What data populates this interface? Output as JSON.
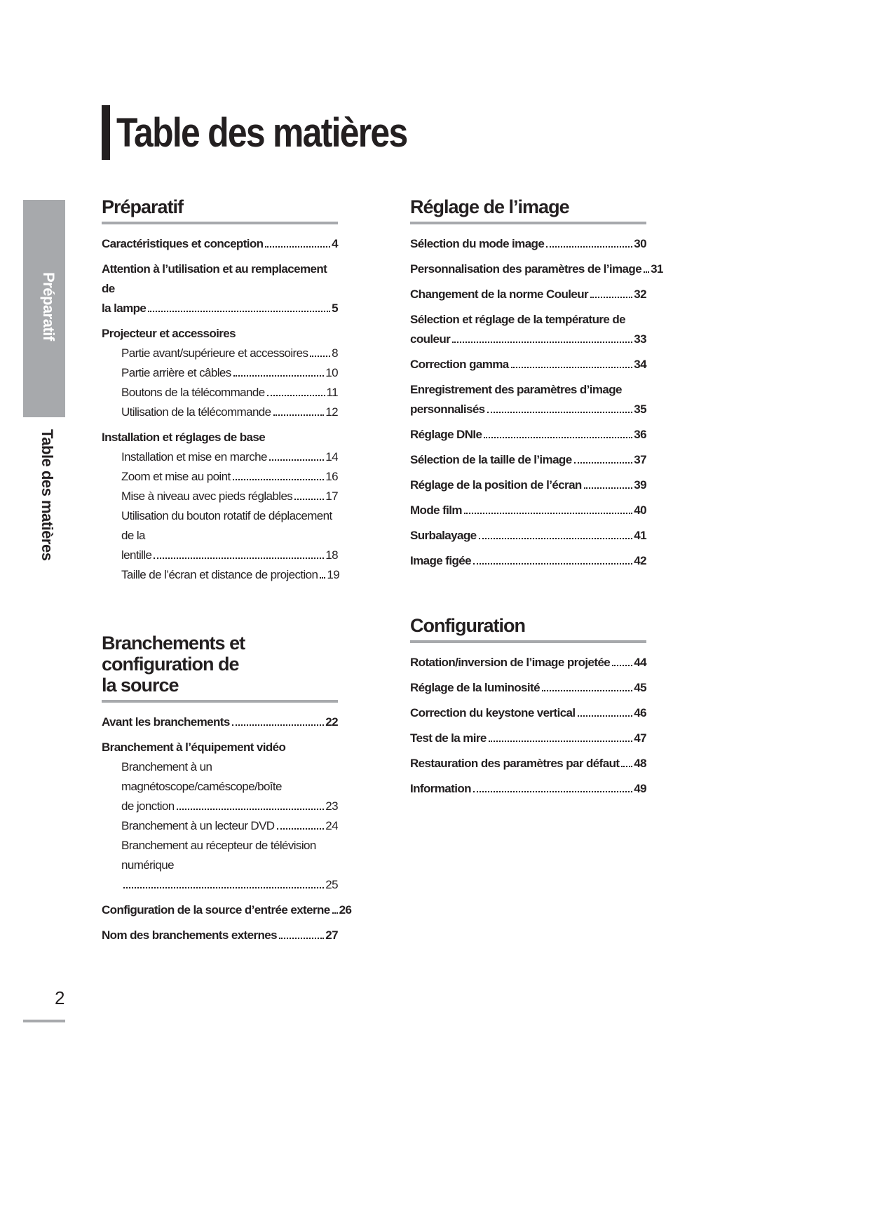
{
  "title": "Table des matières",
  "side_tab": {
    "section": "Préparatif",
    "chapter": "Table des matières"
  },
  "page_number": "2",
  "preparatif": {
    "heading": "Préparatif",
    "e1": {
      "label": "Caractéristiques et conception",
      "page": "4"
    },
    "e2": {
      "line1": "Attention à l’utilisation et au remplacement de",
      "label": "la lampe",
      "page": "5"
    },
    "g1": "Projecteur et accessoires",
    "s1": {
      "label": "Partie avant/supérieure et accessoires",
      "page": "8"
    },
    "s2": {
      "label": "Partie arrière et câbles",
      "page": "10"
    },
    "s3": {
      "label": "Boutons de la télécommande",
      "page": "11"
    },
    "s4": {
      "label": "Utilisation de la télécommande",
      "page": "12"
    },
    "g2": "Installation et réglages de base",
    "s5": {
      "label": "Installation et mise en marche",
      "page": "14"
    },
    "s6": {
      "label": "Zoom et mise au point",
      "page": "16"
    },
    "s7": {
      "label": "Mise à niveau avec pieds réglables",
      "page": "17"
    },
    "s8": {
      "line1": "Utilisation du bouton rotatif de déplacement de la",
      "label": "lentille",
      "page": "18"
    },
    "s9": {
      "label": "Taille de l’écran et distance de projection",
      "page": "19"
    }
  },
  "branchements": {
    "heading_line1": "Branchements et configuration de",
    "heading_line2": "la source",
    "e1": {
      "label": "Avant les branchements",
      "page": "22"
    },
    "g1": "Branchement à l’équipement vidéo",
    "s1": {
      "line1": "Branchement à un magnétoscope/caméscope/boîte",
      "label": "de jonction",
      "page": "23"
    },
    "s2": {
      "label": "Branchement à un lecteur DVD",
      "page": "24"
    },
    "s3": {
      "line1": "Branchement au récepteur de télévision numérique",
      "label": "",
      "page": "25"
    },
    "e2": {
      "label": "Configuration de la source d’entrée externe",
      "page": "26"
    },
    "e3": {
      "label": "Nom des branchements externes",
      "page": "27"
    }
  },
  "reglage": {
    "heading": "Réglage de l’image",
    "e1": {
      "label": "Sélection du mode image",
      "page": "30"
    },
    "e2": {
      "label": "Personnalisation des paramètres de l’image",
      "page": "31"
    },
    "e3": {
      "label": "Changement de la norme Couleur",
      "page": "32"
    },
    "e4": {
      "line1": "Sélection et réglage de la température de",
      "label": "couleur",
      "page": "33"
    },
    "e5": {
      "label": "Correction gamma",
      "page": "34"
    },
    "e6": {
      "line1": "Enregistrement des paramètres d’image",
      "label": "personnalisés",
      "page": "35"
    },
    "e7": {
      "label": "Réglage DNIe",
      "page": "36"
    },
    "e8": {
      "label": "Sélection de la taille de l’image",
      "page": "37"
    },
    "e9": {
      "label": "Réglage de la position de l’écran",
      "page": "39"
    },
    "e10": {
      "label": "Mode film",
      "page": "40"
    },
    "e11": {
      "label": "Surbalayage",
      "page": "41"
    },
    "e12": {
      "label": "Image figée",
      "page": "42"
    }
  },
  "configuration": {
    "heading": "Configuration",
    "e1": {
      "label": "Rotation/inversion de l’image projetée",
      "page": "44"
    },
    "e2": {
      "label": "Réglage de la luminosité",
      "page": "45"
    },
    "e3": {
      "label": "Correction du keystone vertical",
      "page": "46"
    },
    "e4": {
      "label": "Test de la mire",
      "page": "47"
    },
    "e5": {
      "label": "Restauration des paramètres par défaut",
      "page": "48"
    },
    "e6": {
      "label": "Information",
      "page": "49"
    }
  }
}
